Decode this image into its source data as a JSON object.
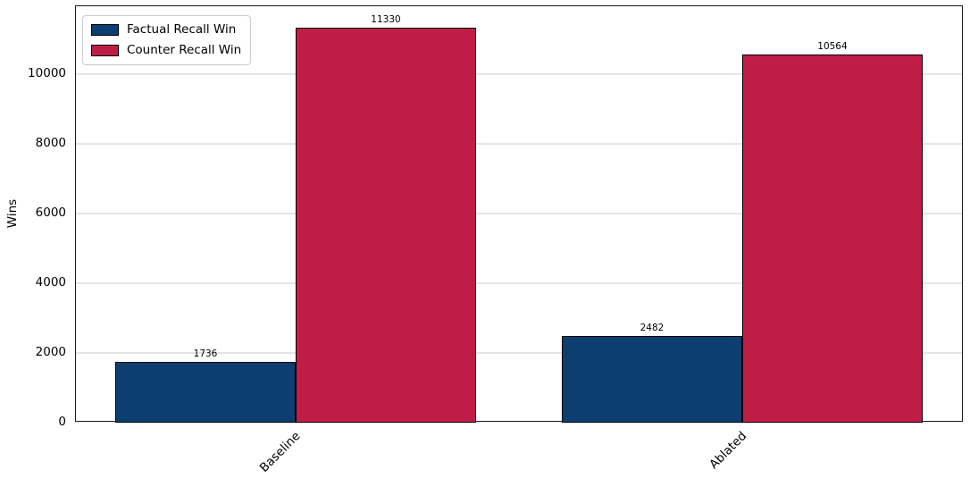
{
  "chart_data": {
    "type": "bar",
    "categories": [
      "Baseline",
      "Ablated"
    ],
    "series": [
      {
        "name": "Factual Recall Win",
        "color": "#0d3e71",
        "values": [
          1736,
          2482
        ]
      },
      {
        "name": "Counter Recall Win",
        "color": "#c01d46",
        "values": [
          11330,
          10564
        ]
      }
    ],
    "title": "",
    "xlabel": "",
    "ylabel": "Wins",
    "yticks": [
      0,
      2000,
      4000,
      6000,
      8000,
      10000
    ],
    "ylim": [
      0,
      11950
    ],
    "grid": true,
    "legend_position": "upper left",
    "bar_edge_color": "#000000",
    "value_labels_shown": true
  }
}
